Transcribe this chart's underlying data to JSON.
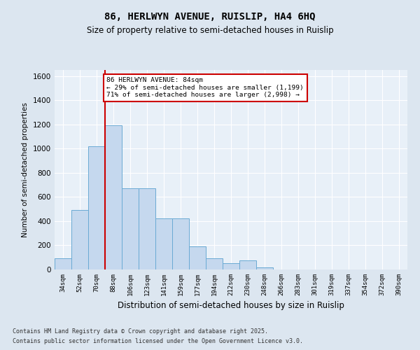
{
  "title1": "86, HERLWYN AVENUE, RUISLIP, HA4 6HQ",
  "title2": "Size of property relative to semi-detached houses in Ruislip",
  "xlabel": "Distribution of semi-detached houses by size in Ruislip",
  "ylabel": "Number of semi-detached properties",
  "categories": [
    "34sqm",
    "52sqm",
    "70sqm",
    "88sqm",
    "106sqm",
    "123sqm",
    "141sqm",
    "159sqm",
    "177sqm",
    "194sqm",
    "212sqm",
    "230sqm",
    "248sqm",
    "266sqm",
    "283sqm",
    "301sqm",
    "319sqm",
    "337sqm",
    "354sqm",
    "372sqm",
    "390sqm"
  ],
  "values": [
    90,
    490,
    1020,
    1190,
    670,
    670,
    420,
    420,
    190,
    90,
    55,
    75,
    20,
    0,
    0,
    0,
    0,
    0,
    0,
    0,
    0
  ],
  "bar_color": "#c5d8ee",
  "bar_edge_color": "#6aaad4",
  "vline_color": "#cc0000",
  "annotation_title": "86 HERLWYN AVENUE: 84sqm",
  "annotation_line1": "← 29% of semi-detached houses are smaller (1,199)",
  "annotation_line2": "71% of semi-detached houses are larger (2,998) →",
  "annotation_box_color": "#cc0000",
  "ylim": [
    0,
    1650
  ],
  "yticks": [
    0,
    200,
    400,
    600,
    800,
    1000,
    1200,
    1400,
    1600
  ],
  "bg_color": "#dce6f0",
  "plot_bg_color": "#e8f0f8",
  "grid_color": "#ffffff",
  "footnote1": "Contains HM Land Registry data © Crown copyright and database right 2025.",
  "footnote2": "Contains public sector information licensed under the Open Government Licence v3.0."
}
